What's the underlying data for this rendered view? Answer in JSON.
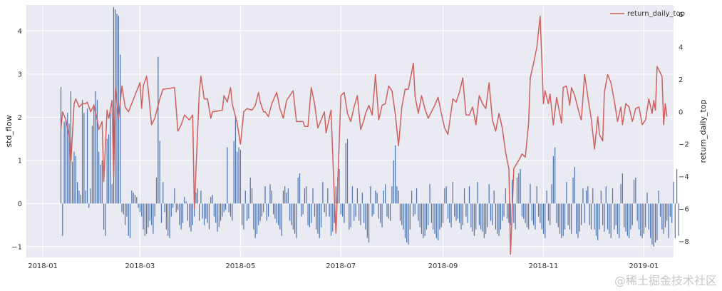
{
  "chart_data": {
    "type": "bar+line",
    "dual_axis": true,
    "left_axis": {
      "label": "std_flow",
      "ylim": [
        -1.25,
        4.6
      ],
      "ticks": [
        -1,
        0,
        1,
        2,
        3,
        4
      ],
      "tick_labels": [
        "−1",
        "0",
        "1",
        "2",
        "3",
        "4"
      ]
    },
    "right_axis": {
      "label": "return_daily_top",
      "ylim": [
        -9.0,
        6.6
      ],
      "ticks": [
        -8,
        -6,
        -4,
        -2,
        0,
        2,
        4,
        6
      ],
      "tick_labels": [
        "−8",
        "−6",
        "−4",
        "−2",
        "0",
        "2",
        "4",
        "6"
      ]
    },
    "x_axis": {
      "xlim": [
        "2017-12-22",
        "2019-01-19"
      ],
      "ticks": [
        "2018-01-01",
        "2018-03-01",
        "2018-05-01",
        "2018-07-01",
        "2018-09-01",
        "2018-11-01",
        "2019-01-01"
      ],
      "tick_labels": [
        "2018-01",
        "2018-03",
        "2018-05",
        "2018-07",
        "2018-09",
        "2018-11",
        "2019-01"
      ]
    },
    "grid": true,
    "legend": {
      "position": "top-right",
      "entries": [
        "return_daily_top"
      ]
    },
    "bar_series": {
      "name": "std_flow",
      "color": "#4c72b0",
      "start_date": "2018-01-12",
      "step_days": 1,
      "values": [
        2.7,
        -0.75,
        1.9,
        1.95,
        2.1,
        1.85,
        2.6,
        0.97,
        1.2,
        1.1,
        0.5,
        0.3,
        0.2,
        2.4,
        2.1,
        0.3,
        2.2,
        -0.1,
        0.35,
        1.8,
        2.3,
        2.6,
        2.4,
        1.2,
        0.9,
        1.0,
        -0.6,
        -0.75,
        1.5,
        1.6,
        2.1,
        0.45,
        4.55,
        4.5,
        4.4,
        4.35,
        3.45,
        -0.2,
        -0.25,
        -0.5,
        -0.3,
        -0.75,
        -0.8,
        0.3,
        0.25,
        0.2,
        0.15,
        -0.1,
        -0.2,
        -0.3,
        -0.6,
        -0.75,
        -0.7,
        -0.55,
        -0.4,
        -0.5,
        -0.7,
        -0.3,
        0.6,
        3.4,
        1.45,
        -0.45,
        0.5,
        -0.2,
        -0.6,
        -0.75,
        -0.8,
        -0.3,
        -0.1,
        0.35,
        -0.2,
        -0.15,
        -0.5,
        -0.6,
        -0.45,
        0.15,
        0.05,
        -0.4,
        -0.55,
        -0.65,
        -0.5,
        -0.3,
        0.25,
        0.35,
        -0.4,
        0.3,
        -0.35,
        -0.5,
        -0.35,
        -0.45,
        -0.6,
        0.15,
        0.2,
        -0.3,
        -0.45,
        -0.65,
        -0.55,
        -0.4,
        -0.3,
        -0.2,
        -0.15,
        1.3,
        -0.2,
        -0.3,
        -0.4,
        1.45,
        2.0,
        1.2,
        1.3,
        1.25,
        -0.5,
        -0.6,
        0.3,
        -0.4,
        -0.35,
        0.6,
        0.35,
        -0.6,
        -0.8,
        -0.7,
        -0.5,
        -0.4,
        -0.3,
        -0.2,
        0.4,
        -0.4,
        -0.3,
        0.45,
        0.3,
        -0.25,
        -0.35,
        -0.45,
        -0.5,
        -0.6,
        -0.75,
        0.3,
        0.4,
        0.25,
        0.35,
        -0.4,
        -0.5,
        -0.6,
        -0.7,
        -0.8,
        0.6,
        0.7,
        -0.3,
        -0.25,
        0.35,
        0.4,
        -0.5,
        -0.55,
        -0.45,
        0.35,
        -0.3,
        -0.6,
        -0.7,
        -0.8,
        -0.55,
        0.5,
        -0.2,
        -0.3,
        0.35,
        -0.3,
        -0.75,
        -0.65,
        -0.45,
        0.4,
        0.6,
        0.8,
        -0.25,
        -0.3,
        -0.45,
        1.4,
        1.5,
        -0.6,
        -0.55,
        0.4,
        -0.4,
        -0.3,
        0.35,
        -0.4,
        -0.5,
        0.25,
        -0.45,
        -0.6,
        -0.8,
        -0.9,
        0.4,
        -0.3,
        -0.25,
        0.3,
        0.25,
        -0.35,
        -0.45,
        -0.55,
        0.3,
        0.45,
        -0.3,
        -0.35,
        -0.4,
        0.4,
        1.0,
        1.35,
        0.4,
        0.3,
        -0.4,
        -0.5,
        -0.6,
        -0.8,
        -0.9,
        -0.95,
        -0.6,
        0.3,
        -0.3,
        -0.25,
        0.35,
        -0.4,
        -0.55,
        -0.7,
        -0.8,
        -0.75,
        -0.6,
        -0.5,
        0.45,
        -0.45,
        -0.6,
        -0.7,
        -0.8,
        -0.85,
        -0.6,
        -0.55,
        -0.45,
        0.35,
        0.4,
        -0.35,
        -0.45,
        -0.55,
        0.5,
        -0.3,
        -0.4,
        -0.35,
        -0.45,
        -0.6,
        -0.5,
        0.35,
        -0.3,
        -0.45,
        0.4,
        -0.55,
        -0.65,
        -0.75,
        -0.6,
        0.5,
        -0.5,
        -0.6,
        -0.65,
        -0.8,
        -0.7,
        -0.55,
        0.45,
        -0.4,
        -0.5,
        0.3,
        -0.6,
        -0.7,
        -0.75,
        -0.6,
        -0.4,
        -0.3,
        0.35,
        -0.35,
        -0.45,
        -0.5,
        0.55,
        -0.45,
        -0.6,
        0.6,
        0.7,
        0.8,
        -0.3,
        -0.35,
        -0.45,
        -0.55,
        -0.6,
        0.45,
        -0.4,
        -0.5,
        -0.6,
        0.4,
        -0.3,
        -0.45,
        -0.6,
        -0.7,
        -0.8,
        0.3,
        -0.4,
        -0.5,
        0.45,
        1.1,
        1.3,
        -0.45,
        -0.55,
        -0.7,
        -0.8,
        -0.75,
        -0.6,
        0.5,
        -0.5,
        -0.6,
        -0.7,
        0.6,
        0.85,
        -0.7,
        -0.8,
        -0.65,
        -0.5,
        0.35,
        -0.45,
        0.3,
        0.4,
        -0.5,
        -0.6,
        0.35,
        -0.6,
        -0.75,
        -0.85,
        -0.6,
        0.3,
        -0.5,
        -0.65,
        0.4,
        -0.6,
        -0.7,
        -0.8,
        0.35,
        -0.6,
        -0.5,
        -0.7,
        -0.8,
        0.45,
        0.7,
        -0.55,
        -0.65,
        -0.75,
        -0.8,
        -0.6,
        -0.5,
        0.55,
        0.6,
        -0.4,
        -0.6,
        -0.75,
        -0.8,
        -0.7,
        -0.55,
        0.25,
        -0.6,
        -0.8,
        -0.95,
        -1.0,
        -0.9,
        -0.85,
        0.3,
        -0.3,
        -0.6,
        -0.7,
        -0.55,
        -0.4,
        -0.8,
        -0.3,
        -0.45,
        0.5,
        -0.8,
        0.8,
        -0.75
      ]
    },
    "line_series": {
      "name": "return_daily_top",
      "color": "#d0605e",
      "points": [
        [
          "2018-01-12",
          -1.0
        ],
        [
          "2018-01-13",
          0.0
        ],
        [
          "2018-01-15",
          -0.5
        ],
        [
          "2018-01-17",
          -1.5
        ],
        [
          "2018-01-18",
          -3.2
        ],
        [
          "2018-01-20",
          0.5
        ],
        [
          "2018-01-21",
          0.8
        ],
        [
          "2018-01-23",
          0.3
        ],
        [
          "2018-01-25",
          0.5
        ],
        [
          "2018-01-27",
          0.5
        ],
        [
          "2018-01-28",
          0.6
        ],
        [
          "2018-01-30",
          0.0
        ],
        [
          "2018-02-01",
          0.4
        ],
        [
          "2018-02-03",
          -0.5
        ],
        [
          "2018-02-04",
          -1.1
        ],
        [
          "2018-02-06",
          -0.6
        ],
        [
          "2018-02-07",
          -4.3
        ],
        [
          "2018-02-09",
          0.1
        ],
        [
          "2018-02-10",
          -0.4
        ],
        [
          "2018-02-11",
          0.1
        ],
        [
          "2018-02-12",
          0.7
        ],
        [
          "2018-02-13",
          -4.0
        ],
        [
          "2018-02-14",
          1.5
        ],
        [
          "2018-02-15",
          0.5
        ],
        [
          "2018-02-16",
          -0.4
        ],
        [
          "2018-02-18",
          1.6
        ],
        [
          "2018-02-20",
          0.3
        ],
        [
          "2018-02-22",
          0.0
        ],
        [
          "2018-03-01",
          1.8
        ],
        [
          "2018-03-02",
          0.2
        ],
        [
          "2018-03-03",
          1.6
        ],
        [
          "2018-03-05",
          2.2
        ],
        [
          "2018-03-06",
          1.4
        ],
        [
          "2018-03-08",
          -0.8
        ],
        [
          "2018-03-10",
          -0.4
        ],
        [
          "2018-03-13",
          0.8
        ],
        [
          "2018-03-15",
          1.4
        ],
        [
          "2018-03-16",
          1.4
        ],
        [
          "2018-03-22",
          1.5
        ],
        [
          "2018-03-24",
          -1.2
        ],
        [
          "2018-03-26",
          -0.8
        ],
        [
          "2018-03-28",
          -0.2
        ],
        [
          "2018-03-31",
          -0.5
        ],
        [
          "2018-04-02",
          -0.2
        ],
        [
          "2018-04-03",
          -6.0
        ],
        [
          "2018-04-06",
          1.2
        ],
        [
          "2018-04-07",
          2.2
        ],
        [
          "2018-04-09",
          0.8
        ],
        [
          "2018-04-11",
          0.8
        ],
        [
          "2018-04-13",
          -0.4
        ],
        [
          "2018-04-14",
          0.0
        ],
        [
          "2018-04-20",
          0.1
        ],
        [
          "2018-04-21",
          1.0
        ],
        [
          "2018-04-23",
          0.6
        ],
        [
          "2018-04-25",
          1.5
        ],
        [
          "2018-04-26",
          0.5
        ],
        [
          "2018-04-28",
          -0.3
        ],
        [
          "2018-04-29",
          -0.7
        ],
        [
          "2018-05-01",
          -2.0
        ],
        [
          "2018-05-03",
          0.0
        ],
        [
          "2018-05-05",
          0.2
        ],
        [
          "2018-05-08",
          0.1
        ],
        [
          "2018-05-10",
          0.4
        ],
        [
          "2018-05-12",
          1.2
        ],
        [
          "2018-05-13",
          0.6
        ],
        [
          "2018-05-15",
          0.0
        ],
        [
          "2018-05-16",
          0.0
        ],
        [
          "2018-05-18",
          -0.3
        ],
        [
          "2018-05-20",
          0.5
        ],
        [
          "2018-05-23",
          1.2
        ],
        [
          "2018-05-25",
          0.2
        ],
        [
          "2018-05-27",
          -0.4
        ],
        [
          "2018-05-29",
          0.7
        ],
        [
          "2018-05-31",
          1.0
        ],
        [
          "2018-06-02",
          1.3
        ],
        [
          "2018-06-04",
          -0.6
        ],
        [
          "2018-06-06",
          -0.6
        ],
        [
          "2018-06-08",
          -0.6
        ],
        [
          "2018-06-09",
          -0.9
        ],
        [
          "2018-06-11",
          -0.9
        ],
        [
          "2018-06-13",
          1.5
        ],
        [
          "2018-06-15",
          0.5
        ],
        [
          "2018-06-17",
          -1.0
        ],
        [
          "2018-06-19",
          -0.5
        ],
        [
          "2018-06-21",
          0.0
        ],
        [
          "2018-06-22",
          -1.3
        ],
        [
          "2018-06-25",
          0.1
        ],
        [
          "2018-06-27",
          -5.2
        ],
        [
          "2018-06-28",
          -7.5
        ],
        [
          "2018-07-01",
          1.0
        ],
        [
          "2018-07-03",
          1.2
        ],
        [
          "2018-07-05",
          -0.1
        ],
        [
          "2018-07-07",
          -0.6
        ],
        [
          "2018-07-09",
          0.3
        ],
        [
          "2018-07-11",
          1.0
        ],
        [
          "2018-07-13",
          -1.1
        ],
        [
          "2018-07-15",
          -0.5
        ],
        [
          "2018-07-16",
          -0.1
        ],
        [
          "2018-07-18",
          0.4
        ],
        [
          "2018-07-20",
          -0.2
        ],
        [
          "2018-07-22",
          2.3
        ],
        [
          "2018-07-24",
          -0.5
        ],
        [
          "2018-07-26",
          0.4
        ],
        [
          "2018-07-28",
          0.5
        ],
        [
          "2018-07-30",
          1.6
        ],
        [
          "2018-08-01",
          1.3
        ],
        [
          "2018-08-03",
          -0.1
        ],
        [
          "2018-08-05",
          -2.1
        ],
        [
          "2018-08-07",
          0.3
        ],
        [
          "2018-08-09",
          1.4
        ],
        [
          "2018-08-11",
          1.4
        ],
        [
          "2018-08-14",
          3.0
        ],
        [
          "2018-08-15",
          1.0
        ],
        [
          "2018-08-17",
          -0.1
        ],
        [
          "2018-08-19",
          1.0
        ],
        [
          "2018-08-21",
          0.2
        ],
        [
          "2018-08-23",
          -0.4
        ],
        [
          "2018-08-25",
          0.0
        ],
        [
          "2018-08-27",
          0.4
        ],
        [
          "2018-08-29",
          0.9
        ],
        [
          "2018-08-31",
          -0.1
        ],
        [
          "2018-09-02",
          -1.0
        ],
        [
          "2018-09-04",
          -1.4
        ],
        [
          "2018-09-07",
          0.8
        ],
        [
          "2018-09-09",
          0.6
        ],
        [
          "2018-09-11",
          1.2
        ],
        [
          "2018-09-13",
          2.1
        ],
        [
          "2018-09-14",
          0.9
        ],
        [
          "2018-09-15",
          -0.2
        ],
        [
          "2018-09-17",
          -0.2
        ],
        [
          "2018-09-19",
          0.3
        ],
        [
          "2018-09-21",
          -0.8
        ],
        [
          "2018-09-23",
          1.0
        ],
        [
          "2018-09-25",
          0.5
        ],
        [
          "2018-09-27",
          0.2
        ],
        [
          "2018-09-29",
          1.8
        ],
        [
          "2018-10-01",
          -0.5
        ],
        [
          "2018-10-03",
          -1.2
        ],
        [
          "2018-10-05",
          -0.1
        ],
        [
          "2018-10-07",
          -1.0
        ],
        [
          "2018-10-09",
          -2.5
        ],
        [
          "2018-10-11",
          -3.5
        ],
        [
          "2018-10-12",
          -8.8
        ],
        [
          "2018-10-14",
          -3.5
        ],
        [
          "2018-10-17",
          -3.0
        ],
        [
          "2018-10-19",
          -2.6
        ],
        [
          "2018-10-21",
          -2.8
        ],
        [
          "2018-10-23",
          -0.7
        ],
        [
          "2018-10-24",
          2.1
        ],
        [
          "2018-10-26",
          3.0
        ],
        [
          "2018-10-28",
          4.0
        ],
        [
          "2018-10-30",
          5.9
        ],
        [
          "2018-11-01",
          0.5
        ],
        [
          "2018-11-02",
          1.3
        ],
        [
          "2018-11-04",
          0.5
        ],
        [
          "2018-11-05",
          1.1
        ],
        [
          "2018-11-07",
          -0.8
        ],
        [
          "2018-11-09",
          0.9
        ],
        [
          "2018-11-12",
          -0.7
        ],
        [
          "2018-11-13",
          1.5
        ],
        [
          "2018-11-15",
          1.6
        ],
        [
          "2018-11-17",
          0.4
        ],
        [
          "2018-11-18",
          1.5
        ],
        [
          "2018-11-20",
          1.0
        ],
        [
          "2018-11-23",
          -0.2
        ],
        [
          "2018-11-24",
          -0.5
        ],
        [
          "2018-11-26",
          2.3
        ],
        [
          "2018-11-28",
          0.9
        ],
        [
          "2018-11-30",
          -0.4
        ],
        [
          "2018-12-02",
          -2.3
        ],
        [
          "2018-12-04",
          -0.3
        ],
        [
          "2018-12-05",
          -1.4
        ],
        [
          "2018-12-07",
          -1.8
        ],
        [
          "2018-12-08",
          1.2
        ],
        [
          "2018-12-10",
          2.3
        ],
        [
          "2018-12-12",
          1.8
        ],
        [
          "2018-12-14",
          0.7
        ],
        [
          "2018-12-16",
          -0.6
        ],
        [
          "2018-12-18",
          0.3
        ],
        [
          "2018-12-19",
          -0.8
        ],
        [
          "2018-12-21",
          0.5
        ],
        [
          "2018-12-23",
          0.3
        ],
        [
          "2018-12-25",
          -0.6
        ],
        [
          "2018-12-27",
          0.2
        ],
        [
          "2018-12-29",
          0.3
        ],
        [
          "2018-12-31",
          -0.8
        ],
        [
          "2019-01-02",
          -0.5
        ],
        [
          "2019-01-04",
          0.8
        ],
        [
          "2019-01-06",
          -0.1
        ],
        [
          "2019-01-07",
          0.7
        ],
        [
          "2019-01-08",
          0.1
        ],
        [
          "2019-01-09",
          2.8
        ],
        [
          "2019-01-11",
          2.4
        ],
        [
          "2019-01-12",
          2.2
        ],
        [
          "2019-01-13",
          -0.8
        ],
        [
          "2019-01-14",
          0.5
        ],
        [
          "2019-01-15",
          -0.3
        ]
      ]
    }
  },
  "watermark": "@稀土掘金技术社区",
  "colors": {
    "plot_bg": "#eaeaf2",
    "grid": "#ffffff",
    "bar": "#4c72b0",
    "line": "#d0605e"
  }
}
